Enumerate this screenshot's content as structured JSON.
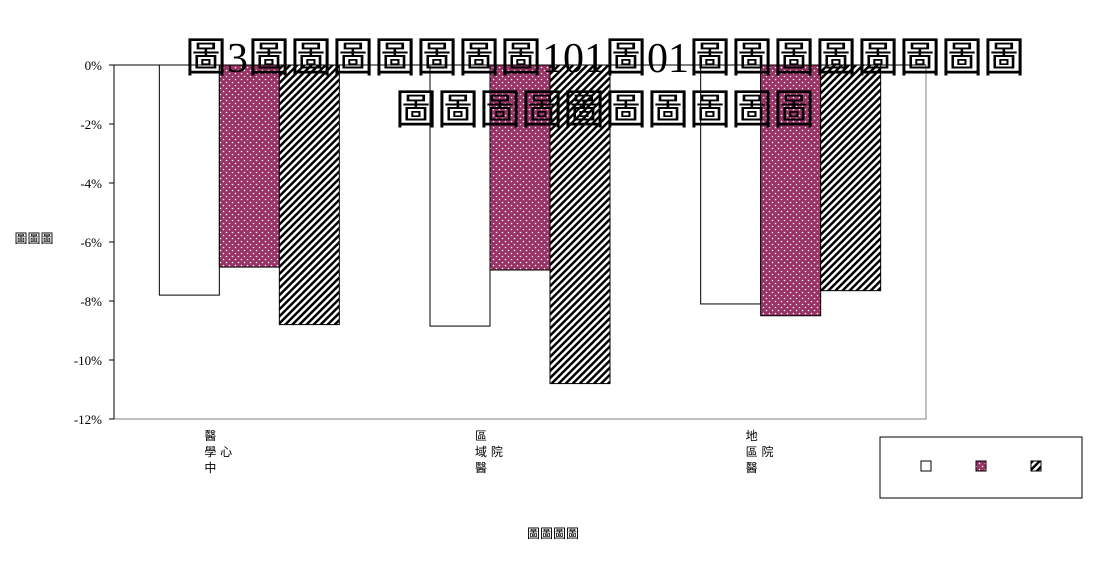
{
  "chart_data": {
    "type": "bar",
    "title": "圖3圖圖圖圖圖圖圖101圖01圖圖圖圖圖圖圖圖",
    "subtitle": "圖圖圖圖圖圖圖圖圖圖",
    "ylabel": "圖圖圖",
    "xlabel": "圖圖圖圖",
    "ylim": [
      -12,
      0
    ],
    "yticks": [
      "0%",
      "-2%",
      "-4%",
      "-6%",
      "-8%",
      "-10%",
      "-12%"
    ],
    "categories": [
      "醫學中心",
      "區域醫院",
      "地區醫院"
    ],
    "category_label_lines": [
      [
        "醫",
        "學 心",
        "中"
      ],
      [
        "區",
        "域 院",
        "醫"
      ],
      [
        "地",
        "區 院",
        "醫"
      ]
    ],
    "series": [
      {
        "values": [
          -7.8,
          -8.85,
          -8.1
        ],
        "pattern": "white",
        "color": "#ffffff"
      },
      {
        "values": [
          -6.85,
          -6.95,
          -8.5
        ],
        "pattern": "dots",
        "color": "#993366"
      },
      {
        "values": [
          -8.8,
          -10.8,
          -7.65
        ],
        "pattern": "diagonal",
        "color": "#000000"
      }
    ],
    "legend": {
      "position": "bottom-right"
    },
    "grid": false
  }
}
